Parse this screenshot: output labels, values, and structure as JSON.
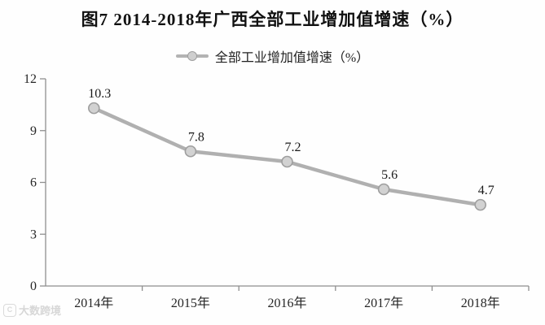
{
  "title": "图7 2014-2018年广西全部工业增加值增速（%）",
  "legend": {
    "label": "全部工业增加值增速（%）"
  },
  "watermark": {
    "logo": "C",
    "text": "大数跨境"
  },
  "colors": {
    "line": "#b0b0b0",
    "marker_fill": "#d2d2d2",
    "marker_stroke": "#9e9e9e",
    "axis": "#8f8f8f",
    "tick_text": "#262626",
    "data_label": "#1a1a1a"
  },
  "chart_data": {
    "type": "line",
    "title": "图7 2014-2018年广西全部工业增加值增速（%）",
    "categories": [
      "2014年",
      "2015年",
      "2016年",
      "2017年",
      "2018年"
    ],
    "series": [
      {
        "name": "全部工业增加值增速（%）",
        "values": [
          10.3,
          7.8,
          7.2,
          5.6,
          4.7
        ]
      }
    ],
    "data_labels": [
      "10.3",
      "7.8",
      "7.2",
      "5.6",
      "4.7"
    ],
    "xlabel": "",
    "ylabel": "",
    "ylim": [
      0,
      12
    ],
    "yticks": [
      0,
      3,
      6,
      9,
      12
    ],
    "grid": false,
    "legend_position": "top"
  }
}
